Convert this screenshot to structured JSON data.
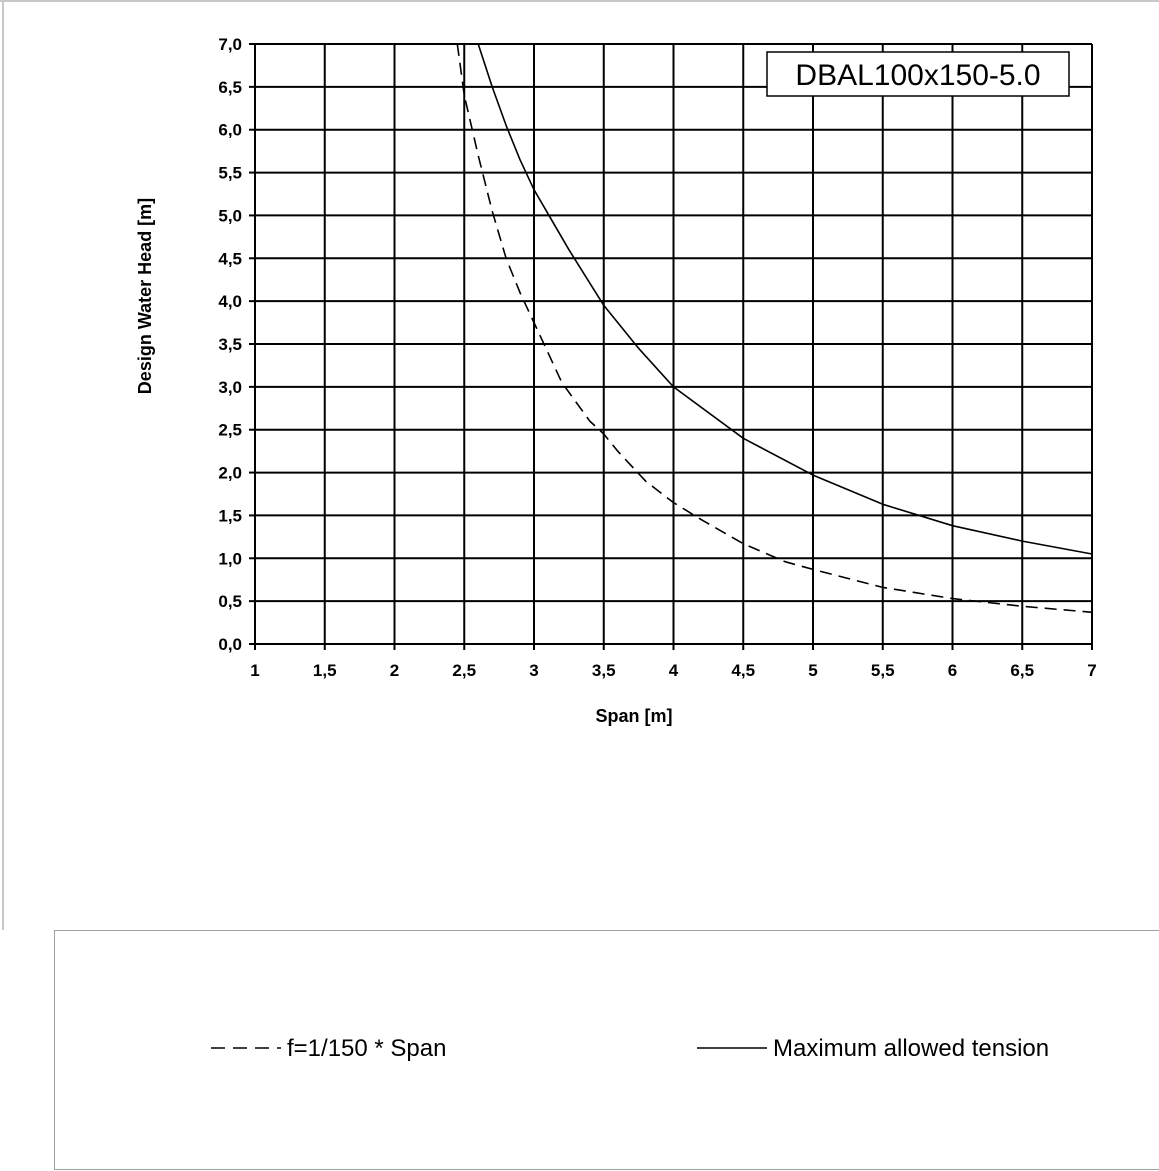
{
  "chart_data": {
    "type": "line",
    "title": "",
    "annotation": "DBAL100x150-5.0",
    "xlabel": "Span [m]",
    "ylabel": "Design Water Head [m]",
    "xlim": [
      1,
      7
    ],
    "ylim": [
      0,
      7
    ],
    "x_ticks": [
      "1",
      "1,5",
      "2",
      "2,5",
      "3",
      "3,5",
      "4",
      "4,5",
      "5",
      "5,5",
      "6",
      "6,5",
      "7"
    ],
    "y_ticks": [
      "0,0",
      "0,5",
      "1,0",
      "1,5",
      "2,0",
      "2,5",
      "3,0",
      "3,5",
      "4,0",
      "4,5",
      "5,0",
      "5,5",
      "6,0",
      "6,5",
      "7,0"
    ],
    "grid": true,
    "legend_position": "bottom",
    "series": [
      {
        "name": "f=1/150 * Span",
        "style": "dashed",
        "x": [
          2.45,
          2.5,
          2.6,
          2.7,
          2.8,
          2.9,
          3.0,
          3.2,
          3.4,
          3.5,
          3.6,
          3.8,
          4.0,
          4.2,
          4.5,
          4.8,
          5.0,
          5.5,
          6.0,
          6.5,
          7.0
        ],
        "y": [
          7.0,
          6.4,
          5.7,
          5.05,
          4.5,
          4.1,
          3.75,
          3.05,
          2.6,
          2.45,
          2.25,
          1.9,
          1.65,
          1.45,
          1.17,
          0.96,
          0.87,
          0.66,
          0.53,
          0.44,
          0.37
        ]
      },
      {
        "name": "Maximum allowed tension",
        "style": "solid",
        "x": [
          2.6,
          2.7,
          2.8,
          2.9,
          3.0,
          3.25,
          3.5,
          3.75,
          4.0,
          4.5,
          5.0,
          5.5,
          6.0,
          6.5,
          7.0
        ],
        "y": [
          7.0,
          6.5,
          6.05,
          5.65,
          5.3,
          4.6,
          3.95,
          3.45,
          3.0,
          2.4,
          1.97,
          1.63,
          1.38,
          1.2,
          1.05
        ]
      }
    ]
  }
}
